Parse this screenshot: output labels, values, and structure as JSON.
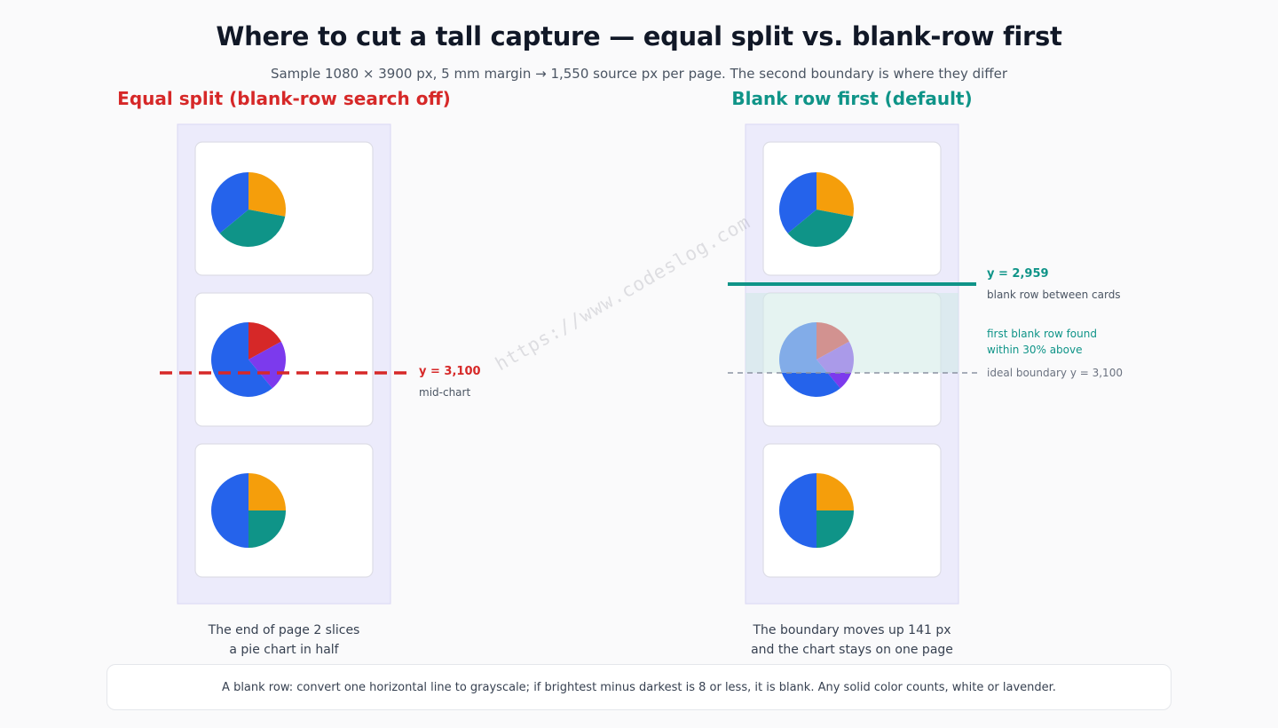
{
  "header": {
    "title": "Where to cut a tall capture — equal split vs. blank-row first",
    "subtitle": "Sample 1080 × 3900 px, 5 mm margin → 1,550 source px per page. The second boundary is where they differ"
  },
  "colors": {
    "red": "#d62828",
    "teal": "#0f9488",
    "blue": "#2563eb",
    "orange": "#f59e0b",
    "purple": "#7c3aed",
    "lavender": "#ecebfb"
  },
  "left_panel": {
    "title": "Equal split (blank-row search off)",
    "cut_label": "y = 3,100",
    "cut_sub": "mid-chart",
    "caption_line1": "The end of page 2 slices",
    "caption_line2": "a pie chart in half"
  },
  "right_panel": {
    "title": "Blank row first (default)",
    "cut_label": "y = 2,959",
    "cut_sub": "blank row between cards",
    "search_line1": "first blank row found",
    "search_line2": "within 30% above",
    "ideal_label": "ideal boundary y = 3,100",
    "caption_line1": "The boundary moves up 141 px",
    "caption_line2": "and the chart stays on one page"
  },
  "footer": {
    "text": "A blank row: convert one horizontal line to grayscale; if brightest minus darkest is 8 or less, it is blank. Any solid color counts, white or lavender."
  },
  "watermark": "https://www.codeslog.com",
  "pies": [
    {
      "slices": [
        {
          "color": "orange",
          "value": 0.28
        },
        {
          "color": "teal",
          "value": 0.36
        },
        {
          "color": "blue",
          "value": 0.36
        }
      ]
    },
    {
      "slices": [
        {
          "color": "red",
          "value": 0.17
        },
        {
          "color": "purple",
          "value": 0.22
        },
        {
          "color": "blue",
          "value": 0.61
        }
      ]
    },
    {
      "slices": [
        {
          "color": "orange",
          "value": 0.25
        },
        {
          "color": "teal",
          "value": 0.25
        },
        {
          "color": "blue",
          "value": 0.5
        }
      ]
    }
  ]
}
